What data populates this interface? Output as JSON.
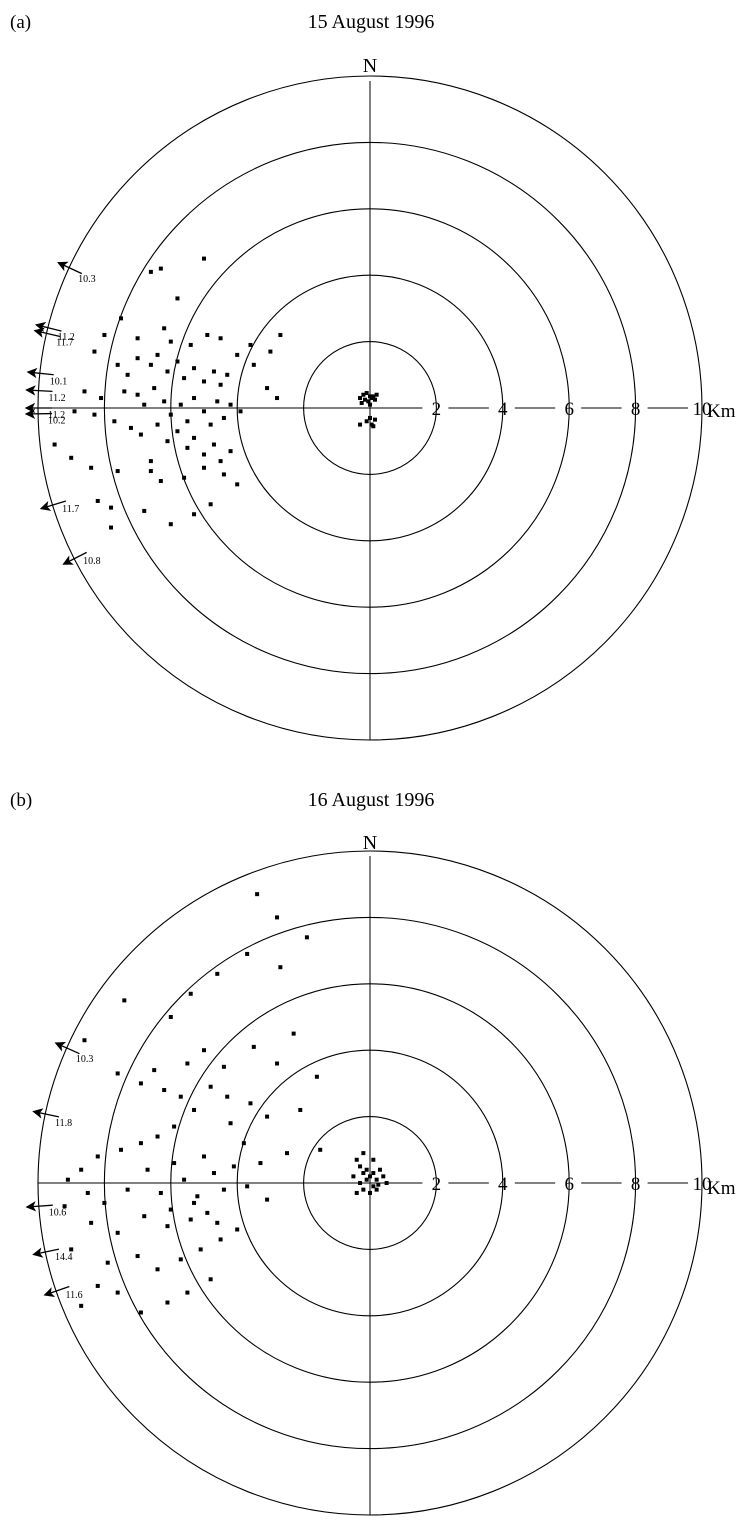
{
  "chart_data": [
    {
      "type": "scatter",
      "panel": "(a)",
      "title": "15 August 1996",
      "north_label": "N",
      "unit": "Km",
      "rings": [
        2,
        4,
        6,
        8,
        10
      ],
      "ring_labels": [
        "2",
        "4",
        "6",
        "8",
        "10"
      ],
      "x_unit": "km east",
      "y_unit": "km north",
      "points": [
        [
          -0.2,
          0.4
        ],
        [
          -0.1,
          0.45
        ],
        [
          0.0,
          0.35
        ],
        [
          -0.15,
          0.25
        ],
        [
          0.05,
          0.3
        ],
        [
          -0.05,
          0.2
        ],
        [
          0.1,
          0.35
        ],
        [
          -0.25,
          0.15
        ],
        [
          0.15,
          0.25
        ],
        [
          0.0,
          0.1
        ],
        [
          -0.3,
          0.3
        ],
        [
          0.2,
          0.4
        ],
        [
          0.0,
          -0.3
        ],
        [
          0.05,
          -0.5
        ],
        [
          0.1,
          -0.55
        ],
        [
          -0.3,
          -0.5
        ],
        [
          -0.1,
          -0.4
        ],
        [
          0.15,
          -0.35
        ],
        [
          -6.6,
          4.1
        ],
        [
          -6.3,
          4.2
        ],
        [
          -5.0,
          4.5
        ],
        [
          -5.8,
          3.3
        ],
        [
          -6.2,
          2.4
        ],
        [
          -7.5,
          2.7
        ],
        [
          -8.0,
          2.2
        ],
        [
          -7.0,
          2.1
        ],
        [
          -6.0,
          2.0
        ],
        [
          -5.4,
          1.9
        ],
        [
          -4.9,
          2.2
        ],
        [
          -4.5,
          2.1
        ],
        [
          -4.0,
          1.6
        ],
        [
          -3.6,
          1.9
        ],
        [
          -3.0,
          1.7
        ],
        [
          -2.7,
          2.2
        ],
        [
          -8.3,
          1.7
        ],
        [
          -7.6,
          1.3
        ],
        [
          -7.3,
          1.0
        ],
        [
          -7.0,
          1.5
        ],
        [
          -6.6,
          1.3
        ],
        [
          -6.4,
          1.6
        ],
        [
          -6.1,
          1.1
        ],
        [
          -5.8,
          1.4
        ],
        [
          -5.6,
          0.9
        ],
        [
          -5.3,
          1.2
        ],
        [
          -5.0,
          0.8
        ],
        [
          -4.7,
          1.1
        ],
        [
          -4.5,
          0.7
        ],
        [
          -4.3,
          1.0
        ],
        [
          -3.5,
          1.3
        ],
        [
          -3.1,
          0.6
        ],
        [
          -2.8,
          0.3
        ],
        [
          -8.6,
          0.5
        ],
        [
          -8.1,
          0.3
        ],
        [
          -7.4,
          0.5
        ],
        [
          -7.0,
          0.4
        ],
        [
          -6.8,
          0.1
        ],
        [
          -6.5,
          0.6
        ],
        [
          -6.2,
          0.2
        ],
        [
          -6.0,
          -0.2
        ],
        [
          -5.7,
          0.1
        ],
        [
          -5.5,
          -0.4
        ],
        [
          -5.3,
          0.3
        ],
        [
          -5.0,
          -0.1
        ],
        [
          -4.8,
          -0.5
        ],
        [
          -4.6,
          0.2
        ],
        [
          -4.4,
          -0.3
        ],
        [
          -4.2,
          0.1
        ],
        [
          -3.9,
          -0.1
        ],
        [
          -8.9,
          -0.1
        ],
        [
          -8.3,
          -0.2
        ],
        [
          -7.7,
          -0.4
        ],
        [
          -7.2,
          -0.6
        ],
        [
          -6.9,
          -0.8
        ],
        [
          -6.4,
          -0.5
        ],
        [
          -6.1,
          -1.0
        ],
        [
          -5.8,
          -0.7
        ],
        [
          -5.5,
          -1.2
        ],
        [
          -5.3,
          -0.9
        ],
        [
          -5.0,
          -1.4
        ],
        [
          -4.7,
          -1.1
        ],
        [
          -4.5,
          -1.6
        ],
        [
          -4.2,
          -1.3
        ],
        [
          -9.5,
          -1.1
        ],
        [
          -9.0,
          -1.5
        ],
        [
          -8.4,
          -1.8
        ],
        [
          -7.6,
          -1.9
        ],
        [
          -6.6,
          -1.6
        ],
        [
          -6.3,
          -2.2
        ],
        [
          -5.6,
          -2.1
        ],
        [
          -5.0,
          -1.8
        ],
        [
          -4.4,
          -2.0
        ],
        [
          -4.0,
          -2.3
        ],
        [
          -8.2,
          -2.8
        ],
        [
          -7.8,
          -3.0
        ],
        [
          -6.8,
          -3.1
        ],
        [
          -6.0,
          -3.5
        ],
        [
          -5.3,
          -3.2
        ],
        [
          -4.8,
          -2.9
        ],
        [
          -6.6,
          -1.9
        ],
        [
          -7.8,
          -3.6
        ]
      ],
      "outliers": [
        {
          "label": "10.3",
          "angle_deg": 155
        },
        {
          "label": "11.2",
          "angle_deg": 166
        },
        {
          "label": "11.7",
          "angle_deg": 167
        },
        {
          "label": "10.1",
          "angle_deg": 174
        },
        {
          "label": "11.2",
          "angle_deg": 177
        },
        {
          "label": "11.2",
          "angle_deg": 180
        },
        {
          "label": "10.2",
          "angle_deg": 181
        },
        {
          "label": "11.7",
          "angle_deg": 197
        },
        {
          "label": "10.8",
          "angle_deg": 207
        }
      ]
    },
    {
      "type": "scatter",
      "panel": "(b)",
      "title": "16 August 1996",
      "north_label": "N",
      "unit": "Km",
      "rings": [
        2,
        4,
        6,
        8,
        10
      ],
      "ring_labels": [
        "2",
        "4",
        "6",
        "8",
        "10"
      ],
      "x_unit": "km east",
      "y_unit": "km north",
      "points": [
        [
          -0.4,
          0.7
        ],
        [
          -0.3,
          0.5
        ],
        [
          -0.2,
          0.3
        ],
        [
          -0.1,
          0.4
        ],
        [
          0.0,
          0.2
        ],
        [
          0.1,
          0.3
        ],
        [
          0.2,
          0.1
        ],
        [
          0.3,
          0.4
        ],
        [
          -0.5,
          0.2
        ],
        [
          -0.3,
          0.0
        ],
        [
          -0.1,
          0.1
        ],
        [
          0.1,
          -0.1
        ],
        [
          0.25,
          -0.05
        ],
        [
          0.4,
          0.2
        ],
        [
          -0.2,
          -0.2
        ],
        [
          0.0,
          -0.3
        ],
        [
          0.2,
          -0.2
        ],
        [
          -0.4,
          -0.3
        ],
        [
          0.5,
          0.0
        ],
        [
          -0.2,
          0.9
        ],
        [
          0.1,
          0.7
        ],
        [
          -3.4,
          8.7
        ],
        [
          -2.8,
          8.0
        ],
        [
          -1.9,
          7.4
        ],
        [
          -2.7,
          6.5
        ],
        [
          -3.7,
          6.9
        ],
        [
          -4.6,
          6.3
        ],
        [
          -5.4,
          5.7
        ],
        [
          -6.0,
          5.0
        ],
        [
          -7.4,
          5.5
        ],
        [
          -8.6,
          4.3
        ],
        [
          -7.6,
          3.3
        ],
        [
          -6.9,
          3.0
        ],
        [
          -6.2,
          2.8
        ],
        [
          -5.5,
          3.6
        ],
        [
          -5.0,
          4.0
        ],
        [
          -4.4,
          3.5
        ],
        [
          -3.5,
          4.1
        ],
        [
          -2.8,
          3.6
        ],
        [
          -2.3,
          4.5
        ],
        [
          -4.8,
          2.9
        ],
        [
          -4.3,
          2.6
        ],
        [
          -3.6,
          2.4
        ],
        [
          -3.1,
          2.0
        ],
        [
          -5.3,
          2.2
        ],
        [
          -5.9,
          1.7
        ],
        [
          -6.4,
          1.4
        ],
        [
          -6.9,
          1.2
        ],
        [
          -7.5,
          1.0
        ],
        [
          -8.2,
          0.8
        ],
        [
          -8.7,
          0.4
        ],
        [
          -9.1,
          0.1
        ],
        [
          -8.5,
          -0.3
        ],
        [
          -8.0,
          -0.6
        ],
        [
          -7.3,
          -0.2
        ],
        [
          -6.7,
          0.4
        ],
        [
          -6.3,
          -0.3
        ],
        [
          -5.9,
          0.6
        ],
        [
          -5.6,
          0.1
        ],
        [
          -5.2,
          -0.4
        ],
        [
          -5.0,
          0.8
        ],
        [
          -4.7,
          0.3
        ],
        [
          -4.4,
          -0.2
        ],
        [
          -4.1,
          0.5
        ],
        [
          -3.8,
          1.2
        ],
        [
          -3.3,
          0.6
        ],
        [
          -3.1,
          -0.5
        ],
        [
          -4.9,
          -0.9
        ],
        [
          -5.4,
          -1.1
        ],
        [
          -6.1,
          -1.3
        ],
        [
          -6.8,
          -1.0
        ],
        [
          -7.6,
          -1.5
        ],
        [
          -8.4,
          -1.2
        ],
        [
          -9.2,
          -0.7
        ],
        [
          -9.0,
          -2.0
        ],
        [
          -7.9,
          -2.4
        ],
        [
          -7.0,
          -2.2
        ],
        [
          -6.4,
          -2.6
        ],
        [
          -5.7,
          -2.3
        ],
        [
          -5.1,
          -2.0
        ],
        [
          -4.5,
          -1.7
        ],
        [
          -4.0,
          -1.4
        ],
        [
          -4.8,
          -2.9
        ],
        [
          -5.5,
          -3.3
        ],
        [
          -6.1,
          -3.6
        ],
        [
          -6.9,
          -3.9
        ],
        [
          -7.6,
          -3.3
        ],
        [
          -8.2,
          -3.1
        ],
        [
          -8.7,
          -3.7
        ],
        [
          -5.3,
          -0.6
        ],
        [
          -4.6,
          -1.2
        ],
        [
          -6.0,
          -0.8
        ],
        [
          -3.7,
          -0.1
        ],
        [
          -4.2,
          1.8
        ],
        [
          -5.7,
          2.6
        ],
        [
          -6.5,
          3.4
        ],
        [
          -2.1,
          2.2
        ],
        [
          -1.5,
          1.0
        ],
        [
          -2.5,
          0.9
        ],
        [
          -1.6,
          3.2
        ]
      ],
      "outliers": [
        {
          "label": "10.3",
          "angle_deg": 156
        },
        {
          "label": "11.8",
          "angle_deg": 168
        },
        {
          "label": "10.6",
          "angle_deg": 184
        },
        {
          "label": "14.4",
          "angle_deg": 192
        },
        {
          "label": "11.6",
          "angle_deg": 199
        }
      ]
    }
  ]
}
